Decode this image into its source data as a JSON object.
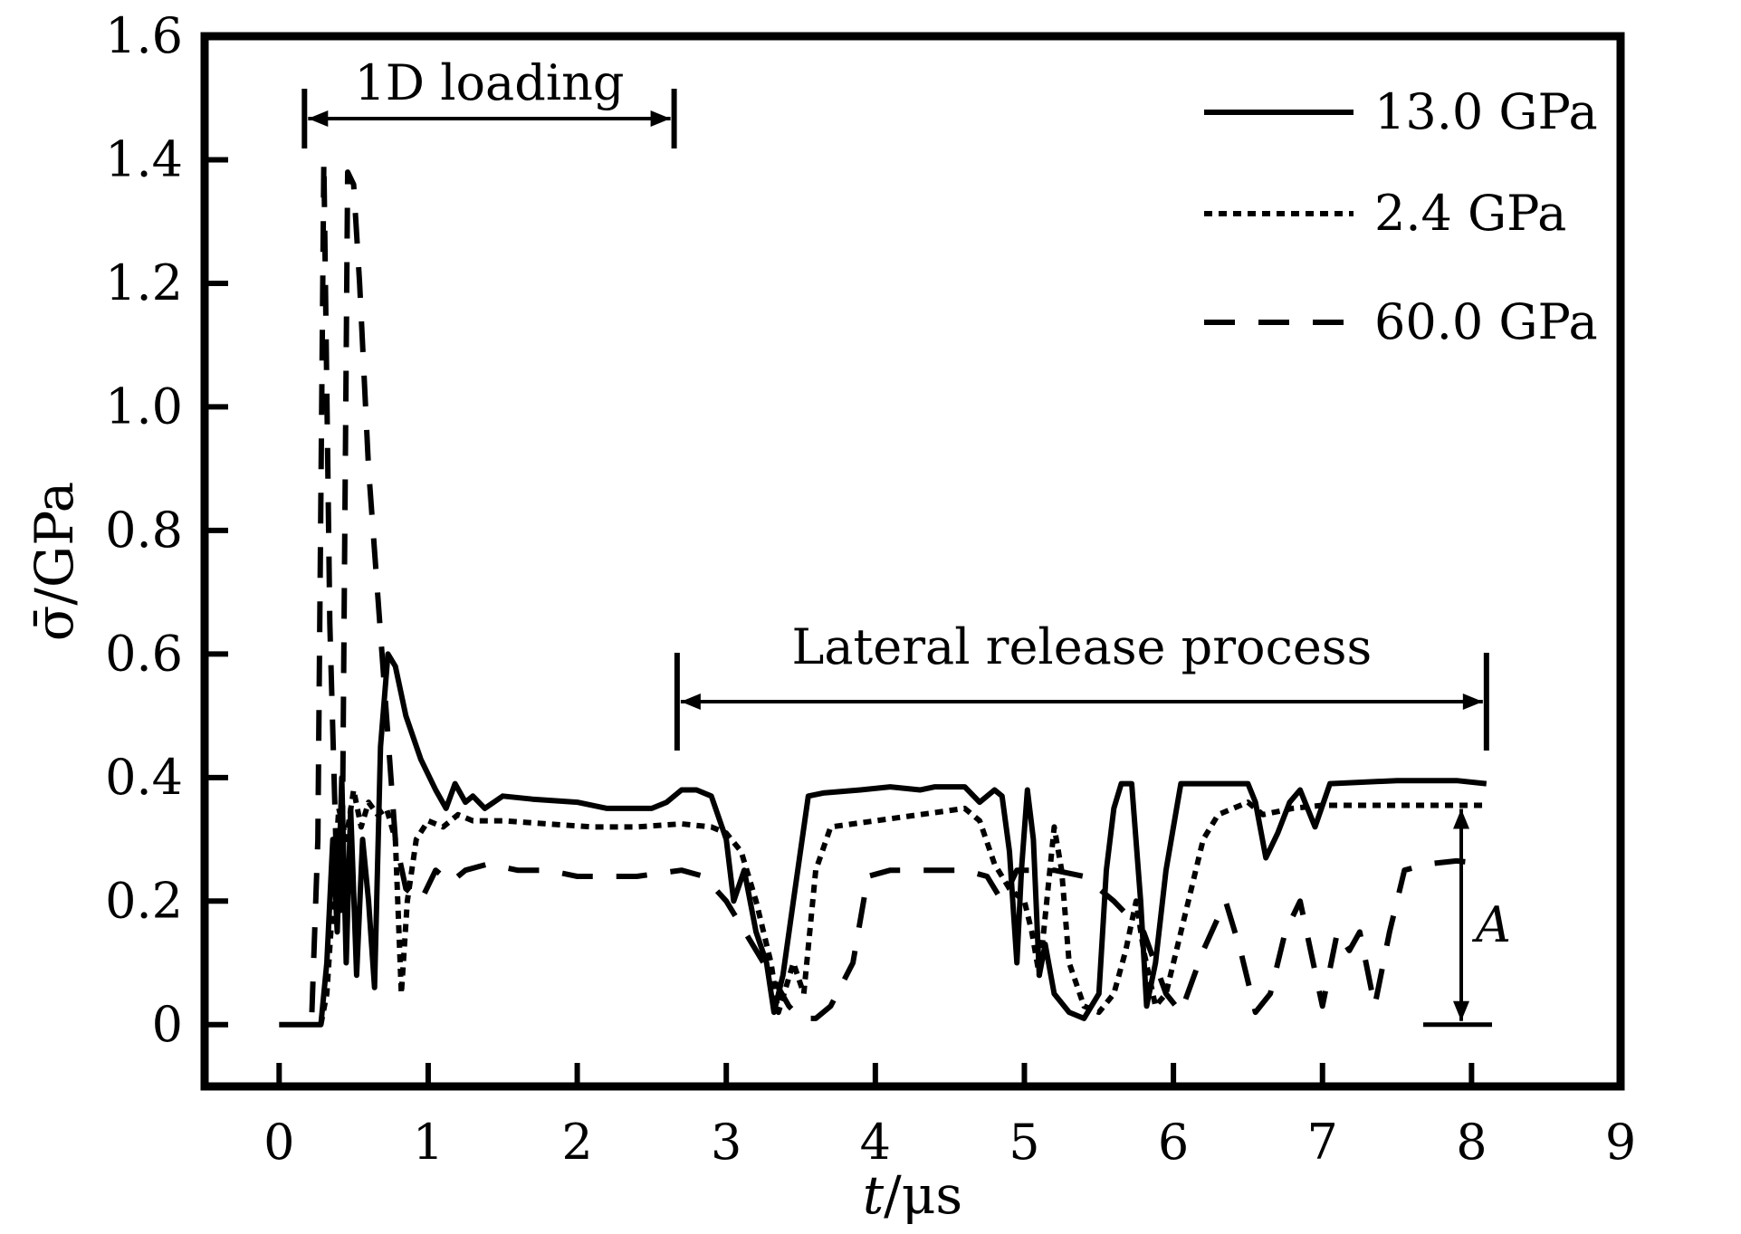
{
  "chart_data": {
    "type": "line",
    "xlabel_italic": "t",
    "xlabel_rest": "/μs",
    "ylabel": "σ̄/GPa",
    "xlim": [
      -0.5,
      9
    ],
    "ylim": [
      -0.1,
      1.6
    ],
    "xticks": [
      0,
      1,
      2,
      3,
      4,
      5,
      6,
      7,
      8,
      9
    ],
    "yticks": [
      0,
      0.2,
      0.4,
      0.6,
      0.8,
      1.0,
      1.2,
      1.4,
      1.6
    ],
    "ytick_labels": [
      "0",
      "0.2",
      "0.4",
      "0.6",
      "0.8",
      "1.0",
      "1.2",
      "1.4",
      "1.6"
    ],
    "grid": false,
    "legend_position": "top-right",
    "series": [
      {
        "name": "13.0 GPa",
        "style": "solid",
        "points": [
          [
            0,
            0
          ],
          [
            0.28,
            0
          ],
          [
            0.32,
            0.1
          ],
          [
            0.36,
            0.3
          ],
          [
            0.39,
            0.15
          ],
          [
            0.42,
            0.4
          ],
          [
            0.45,
            0.1
          ],
          [
            0.48,
            0.35
          ],
          [
            0.52,
            0.08
          ],
          [
            0.56,
            0.3
          ],
          [
            0.6,
            0.2
          ],
          [
            0.64,
            0.06
          ],
          [
            0.68,
            0.45
          ],
          [
            0.73,
            0.6
          ],
          [
            0.78,
            0.58
          ],
          [
            0.85,
            0.5
          ],
          [
            0.95,
            0.43
          ],
          [
            1.05,
            0.38
          ],
          [
            1.12,
            0.35
          ],
          [
            1.18,
            0.39
          ],
          [
            1.25,
            0.36
          ],
          [
            1.3,
            0.37
          ],
          [
            1.38,
            0.35
          ],
          [
            1.5,
            0.37
          ],
          [
            1.7,
            0.365
          ],
          [
            2.0,
            0.36
          ],
          [
            2.2,
            0.35
          ],
          [
            2.5,
            0.35
          ],
          [
            2.6,
            0.36
          ],
          [
            2.7,
            0.38
          ],
          [
            2.8,
            0.38
          ],
          [
            2.9,
            0.37
          ],
          [
            3.0,
            0.3
          ],
          [
            3.05,
            0.2
          ],
          [
            3.12,
            0.25
          ],
          [
            3.2,
            0.15
          ],
          [
            3.27,
            0.1
          ],
          [
            3.32,
            0.02
          ],
          [
            3.38,
            0.08
          ],
          [
            3.45,
            0.2
          ],
          [
            3.55,
            0.37
          ],
          [
            3.65,
            0.375
          ],
          [
            3.9,
            0.38
          ],
          [
            4.1,
            0.385
          ],
          [
            4.3,
            0.38
          ],
          [
            4.4,
            0.385
          ],
          [
            4.6,
            0.385
          ],
          [
            4.7,
            0.36
          ],
          [
            4.8,
            0.38
          ],
          [
            4.85,
            0.37
          ],
          [
            4.9,
            0.28
          ],
          [
            4.95,
            0.1
          ],
          [
            4.98,
            0.25
          ],
          [
            5.02,
            0.38
          ],
          [
            5.06,
            0.3
          ],
          [
            5.1,
            0.08
          ],
          [
            5.14,
            0.13
          ],
          [
            5.2,
            0.05
          ],
          [
            5.3,
            0.02
          ],
          [
            5.4,
            0.01
          ],
          [
            5.5,
            0.05
          ],
          [
            5.55,
            0.25
          ],
          [
            5.6,
            0.35
          ],
          [
            5.65,
            0.39
          ],
          [
            5.72,
            0.39
          ],
          [
            5.78,
            0.2
          ],
          [
            5.82,
            0.03
          ],
          [
            5.88,
            0.1
          ],
          [
            5.95,
            0.25
          ],
          [
            6.05,
            0.39
          ],
          [
            6.5,
            0.39
          ],
          [
            6.55,
            0.36
          ],
          [
            6.62,
            0.27
          ],
          [
            6.7,
            0.31
          ],
          [
            6.78,
            0.36
          ],
          [
            6.85,
            0.38
          ],
          [
            6.95,
            0.32
          ],
          [
            7.05,
            0.39
          ],
          [
            7.5,
            0.395
          ],
          [
            7.9,
            0.395
          ],
          [
            8.1,
            0.39
          ]
        ]
      },
      {
        "name": "2.4 GPa",
        "style": "dotted",
        "points": [
          [
            0.28,
            0
          ],
          [
            0.32,
            0.05
          ],
          [
            0.36,
            0.2
          ],
          [
            0.4,
            0.35
          ],
          [
            0.45,
            0.3
          ],
          [
            0.5,
            0.38
          ],
          [
            0.55,
            0.32
          ],
          [
            0.6,
            0.36
          ],
          [
            0.66,
            0.34
          ],
          [
            0.72,
            0.35
          ],
          [
            0.78,
            0.3
          ],
          [
            0.82,
            0.05
          ],
          [
            0.86,
            0.2
          ],
          [
            0.92,
            0.3
          ],
          [
            1.0,
            0.33
          ],
          [
            1.1,
            0.32
          ],
          [
            1.2,
            0.34
          ],
          [
            1.3,
            0.33
          ],
          [
            1.5,
            0.33
          ],
          [
            1.8,
            0.325
          ],
          [
            2.1,
            0.32
          ],
          [
            2.4,
            0.32
          ],
          [
            2.7,
            0.325
          ],
          [
            2.9,
            0.32
          ],
          [
            3.0,
            0.31
          ],
          [
            3.1,
            0.28
          ],
          [
            3.2,
            0.2
          ],
          [
            3.3,
            0.1
          ],
          [
            3.35,
            0.02
          ],
          [
            3.45,
            0.1
          ],
          [
            3.52,
            0.05
          ],
          [
            3.6,
            0.25
          ],
          [
            3.7,
            0.32
          ],
          [
            4.0,
            0.33
          ],
          [
            4.3,
            0.34
          ],
          [
            4.6,
            0.35
          ],
          [
            4.7,
            0.33
          ],
          [
            4.8,
            0.26
          ],
          [
            4.9,
            0.22
          ],
          [
            5.0,
            0.2
          ],
          [
            5.05,
            0.15
          ],
          [
            5.1,
            0.08
          ],
          [
            5.15,
            0.2
          ],
          [
            5.2,
            0.32
          ],
          [
            5.25,
            0.25
          ],
          [
            5.3,
            0.1
          ],
          [
            5.4,
            0.03
          ],
          [
            5.5,
            0.02
          ],
          [
            5.6,
            0.05
          ],
          [
            5.68,
            0.12
          ],
          [
            5.75,
            0.2
          ],
          [
            5.8,
            0.12
          ],
          [
            5.88,
            0.03
          ],
          [
            5.95,
            0.05
          ],
          [
            6.0,
            0.1
          ],
          [
            6.1,
            0.2
          ],
          [
            6.2,
            0.3
          ],
          [
            6.3,
            0.34
          ],
          [
            6.5,
            0.36
          ],
          [
            6.6,
            0.34
          ],
          [
            6.8,
            0.35
          ],
          [
            7.0,
            0.355
          ],
          [
            7.5,
            0.355
          ],
          [
            8.1,
            0.355
          ]
        ]
      },
      {
        "name": "60.0 GPa",
        "style": "dashed",
        "points": [
          [
            0.22,
            0.02
          ],
          [
            0.26,
            0.3
          ],
          [
            0.3,
            1.4
          ],
          [
            0.34,
            0.65
          ],
          [
            0.38,
            0.3
          ],
          [
            0.42,
            0.18
          ],
          [
            0.46,
            1.38
          ],
          [
            0.5,
            1.36
          ],
          [
            0.54,
            1.2
          ],
          [
            0.6,
            0.9
          ],
          [
            0.66,
            0.7
          ],
          [
            0.72,
            0.5
          ],
          [
            0.78,
            0.3
          ],
          [
            0.85,
            0.22
          ],
          [
            0.95,
            0.2
          ],
          [
            1.05,
            0.25
          ],
          [
            1.15,
            0.23
          ],
          [
            1.25,
            0.25
          ],
          [
            1.4,
            0.26
          ],
          [
            1.6,
            0.25
          ],
          [
            1.8,
            0.25
          ],
          [
            2.0,
            0.24
          ],
          [
            2.4,
            0.24
          ],
          [
            2.7,
            0.25
          ],
          [
            2.85,
            0.24
          ],
          [
            3.0,
            0.2
          ],
          [
            3.1,
            0.16
          ],
          [
            3.25,
            0.1
          ],
          [
            3.35,
            0.06
          ],
          [
            3.42,
            0.03
          ],
          [
            3.5,
            0.01
          ],
          [
            3.6,
            0.01
          ],
          [
            3.7,
            0.03
          ],
          [
            3.85,
            0.1
          ],
          [
            3.95,
            0.24
          ],
          [
            4.1,
            0.25
          ],
          [
            4.4,
            0.25
          ],
          [
            4.6,
            0.25
          ],
          [
            4.75,
            0.24
          ],
          [
            4.85,
            0.2
          ],
          [
            4.95,
            0.25
          ],
          [
            5.2,
            0.25
          ],
          [
            5.4,
            0.24
          ],
          [
            5.6,
            0.2
          ],
          [
            5.8,
            0.15
          ],
          [
            5.95,
            0.05
          ],
          [
            6.05,
            0.02
          ],
          [
            6.2,
            0.12
          ],
          [
            6.35,
            0.2
          ],
          [
            6.45,
            0.12
          ],
          [
            6.55,
            0.02
          ],
          [
            6.65,
            0.05
          ],
          [
            6.75,
            0.15
          ],
          [
            6.85,
            0.2
          ],
          [
            6.92,
            0.12
          ],
          [
            7.0,
            0.03
          ],
          [
            7.1,
            0.15
          ],
          [
            7.18,
            0.12
          ],
          [
            7.25,
            0.15
          ],
          [
            7.35,
            0.03
          ],
          [
            7.45,
            0.15
          ],
          [
            7.55,
            0.25
          ],
          [
            7.7,
            0.26
          ],
          [
            7.9,
            0.265
          ],
          [
            8.1,
            0.26
          ]
        ]
      }
    ],
    "annotations": {
      "loading_label": "1D loading",
      "loading_range": [
        0.17,
        2.65
      ],
      "release_label": "Lateral release process",
      "release_range": [
        2.67,
        8.1
      ],
      "amplitude_label": "A"
    }
  }
}
